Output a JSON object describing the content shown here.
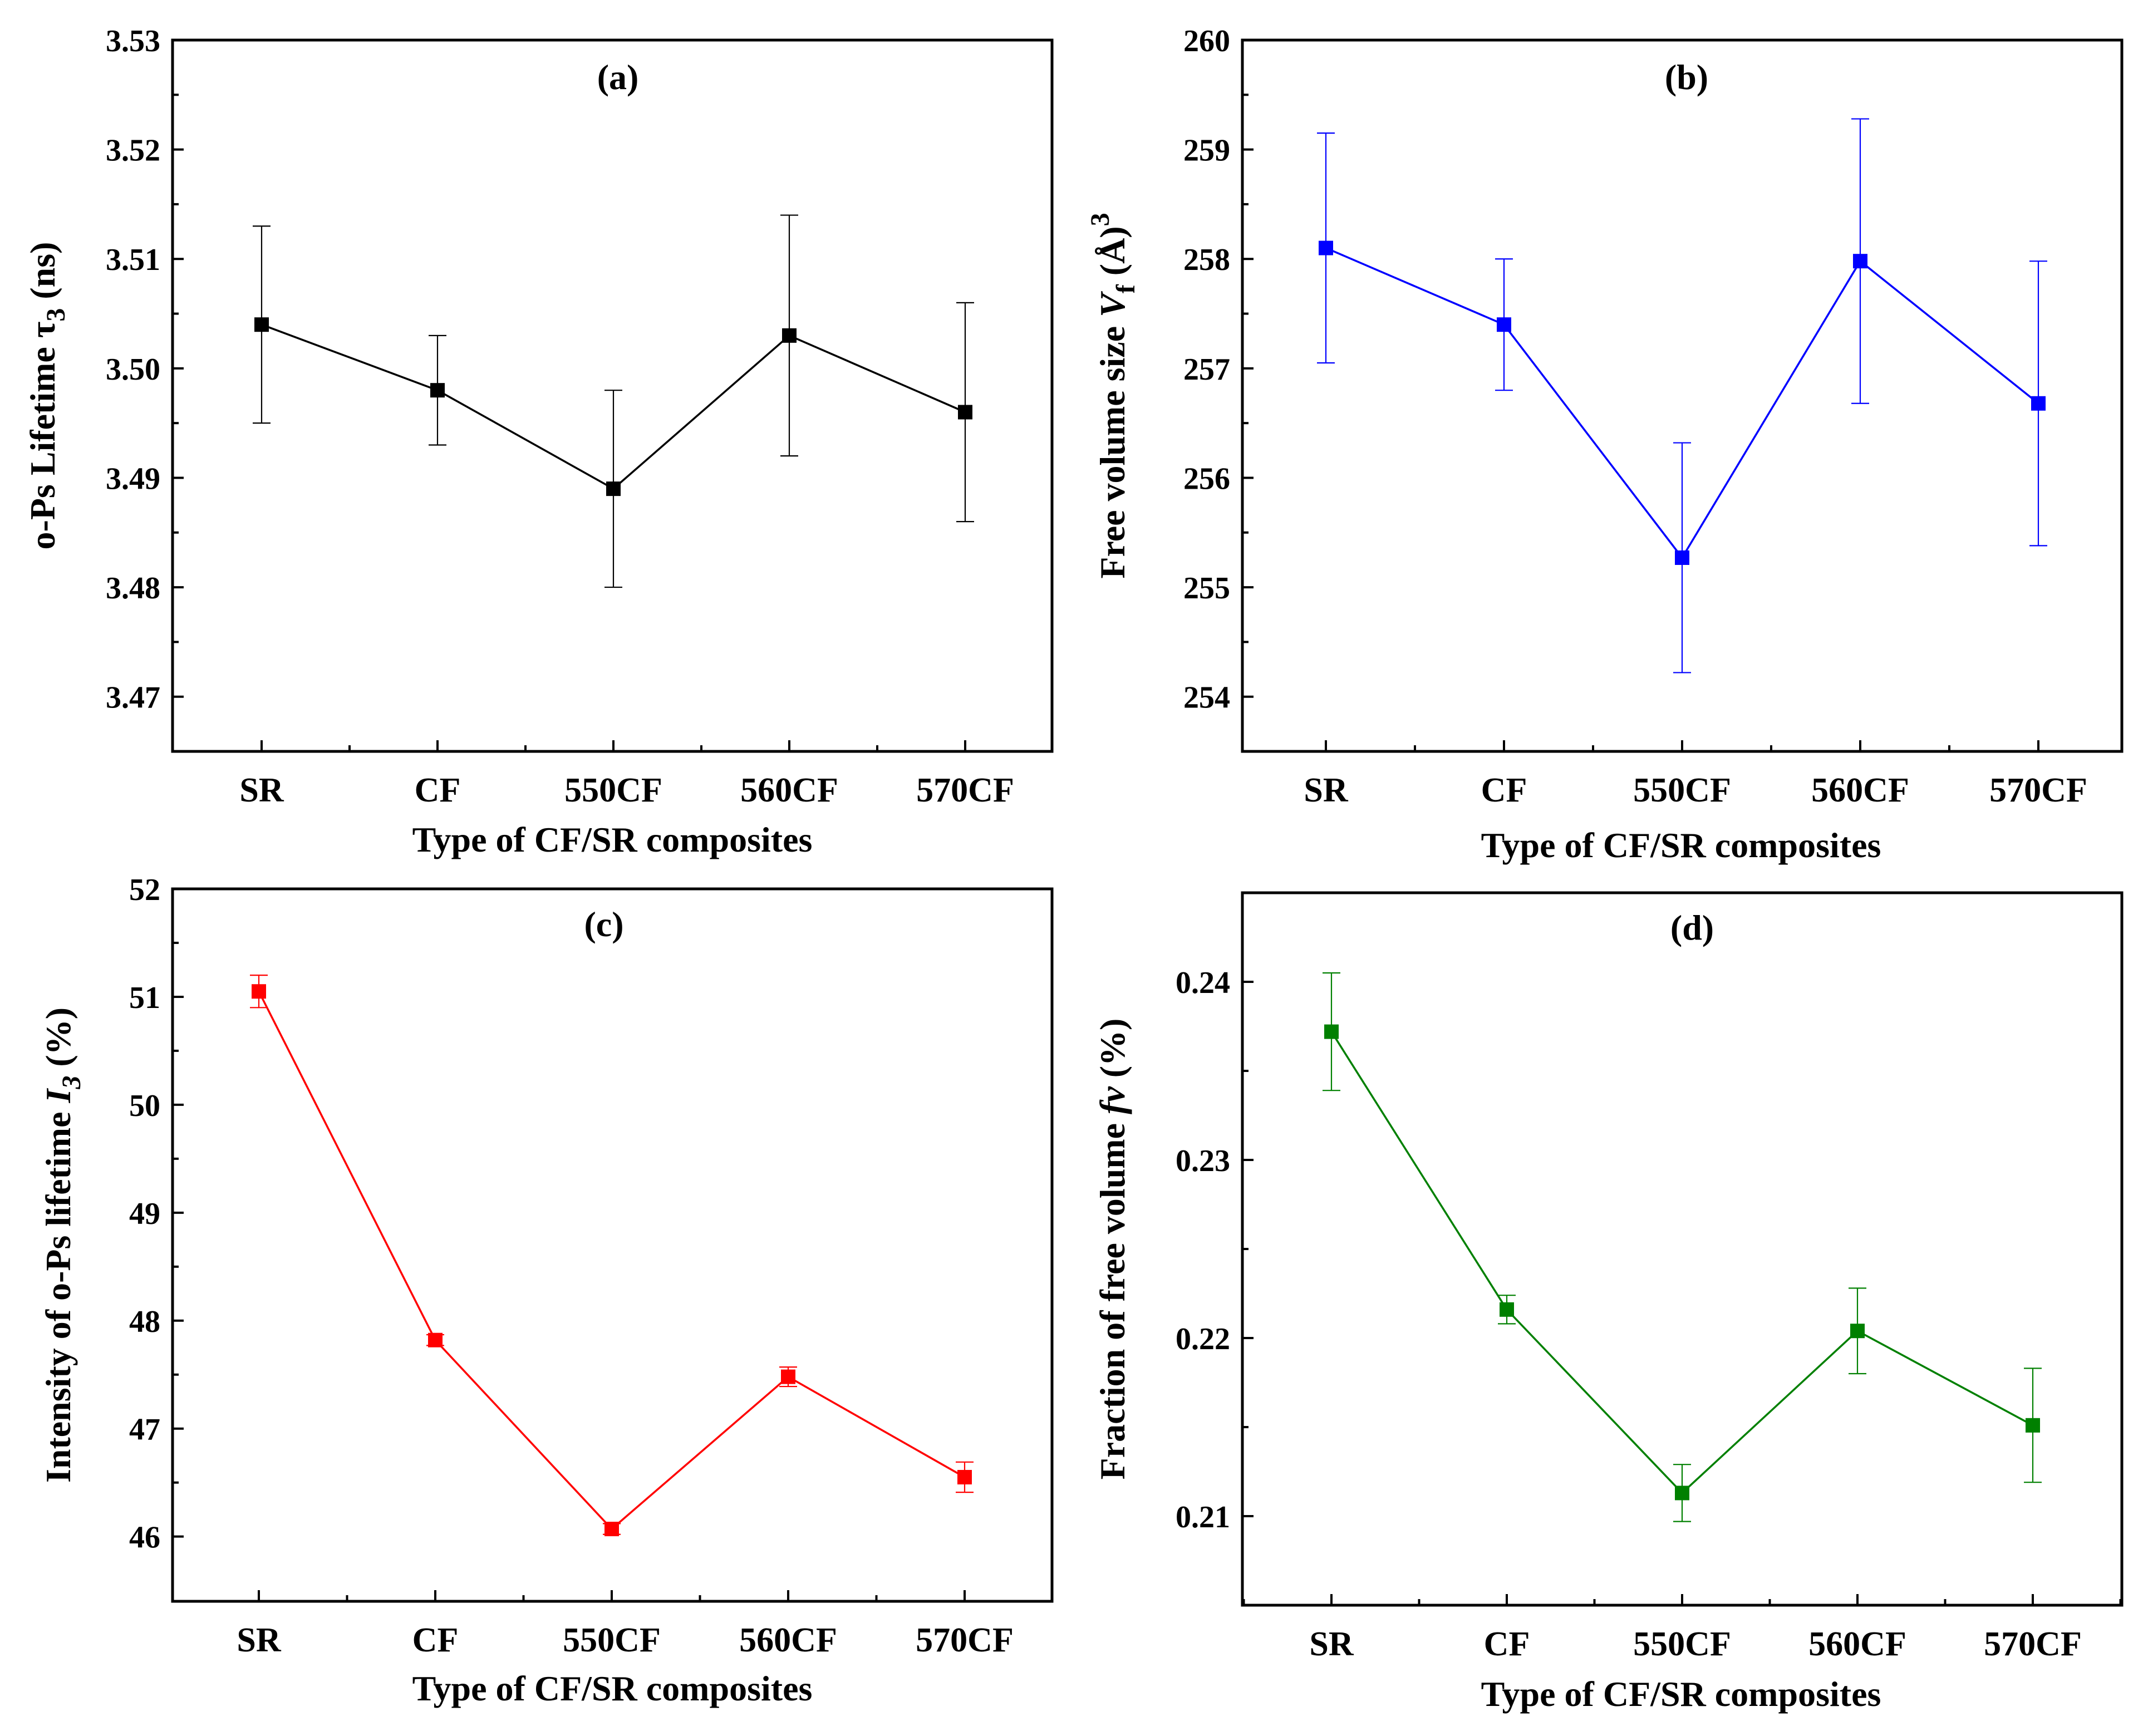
{
  "chart_data": [
    {
      "type": "line",
      "panel_label": "(a)",
      "color": "#000000",
      "categories": [
        "SR",
        "CF",
        "550CF",
        "560CF",
        "570CF"
      ],
      "values": [
        3.504,
        3.498,
        3.489,
        3.503,
        3.496
      ],
      "errors": [
        0.009,
        0.005,
        0.009,
        0.011,
        0.01
      ],
      "xlabel": "Type of CF/SR composites",
      "ylabel": {
        "prefix": "o-Ps Lifetime ",
        "symbol": "τ",
        "sub": "3",
        "suffix": " (ns)"
      },
      "ylim": [
        3.465,
        3.53
      ],
      "yticks": [
        3.47,
        3.48,
        3.49,
        3.5,
        3.51,
        3.52,
        3.53
      ],
      "ytick_labels": [
        "3.47",
        "3.48",
        "3.49",
        "3.50",
        "3.51",
        "3.52",
        "3.53"
      ]
    },
    {
      "type": "line",
      "panel_label": "(b)",
      "color": "#0000ff",
      "categories": [
        "SR",
        "CF",
        "550CF",
        "560CF",
        "570CF"
      ],
      "values": [
        258.1,
        257.4,
        255.27,
        257.98,
        256.68
      ],
      "errors": [
        1.05,
        0.6,
        1.05,
        1.3,
        1.3
      ],
      "xlabel": "Type of CF/SR composites",
      "ylabel": {
        "prefix": "Free volume size ",
        "symbol": "V",
        "sub": "f",
        "suffix": " (Å)",
        "sup": "3"
      },
      "ylim": [
        253.5,
        260
      ],
      "yticks": [
        254,
        255,
        256,
        257,
        258,
        259,
        260
      ],
      "ytick_labels": [
        "254",
        "255",
        "256",
        "257",
        "258",
        "259",
        "260"
      ]
    },
    {
      "type": "line",
      "panel_label": "(c)",
      "color": "#ff0000",
      "categories": [
        "SR",
        "CF",
        "550CF",
        "560CF",
        "570CF"
      ],
      "values": [
        51.05,
        47.82,
        46.07,
        47.48,
        46.55
      ],
      "errors": [
        0.15,
        0.05,
        0.05,
        0.09,
        0.14
      ],
      "xlabel": "Type of CF/SR composites",
      "ylabel": {
        "prefix": "Intensity of o-Ps lifetime ",
        "symbol": "I",
        "sub": "3",
        "suffix": " (%)"
      },
      "ylim": [
        45.4,
        52
      ],
      "yticks": [
        46,
        47,
        48,
        49,
        50,
        51,
        52
      ],
      "ytick_labels": [
        "46",
        "47",
        "48",
        "49",
        "50",
        "51",
        "52"
      ]
    },
    {
      "type": "line",
      "panel_label": "(d)",
      "color": "#008000",
      "categories": [
        "SR",
        "CF",
        "550CF",
        "560CF",
        "570CF"
      ],
      "values": [
        0.2372,
        0.2216,
        0.2113,
        0.2204,
        0.2151
      ],
      "errors": [
        0.0033,
        0.0008,
        0.0016,
        0.0024,
        0.0032
      ],
      "xlabel": "Type of CF/SR composites",
      "ylabel": {
        "prefix": "Fraction of free volume ",
        "symbol": "fv",
        "sub": "",
        "suffix": " (%)"
      },
      "ylim": [
        0.205,
        0.245
      ],
      "yticks": [
        0.21,
        0.22,
        0.23,
        0.24
      ],
      "ytick_labels": [
        "0.21",
        "0.22",
        "0.23",
        "0.24"
      ]
    }
  ]
}
